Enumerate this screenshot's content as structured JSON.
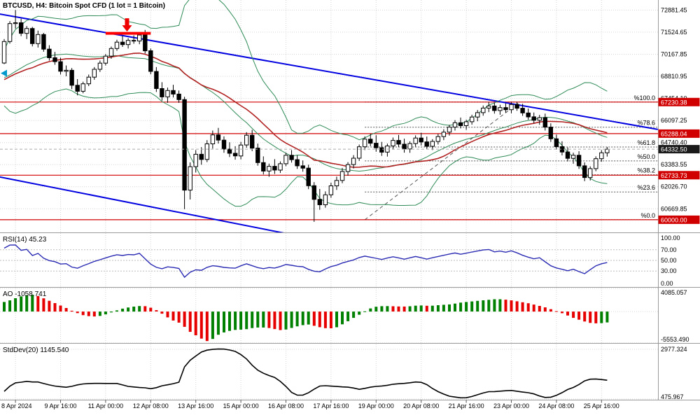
{
  "chart": {
    "title": "BTCUSD, H4: Bitcoin Spot CFD (1 lot = 1 Bitcoin)",
    "symbol": "BTCUSD",
    "timeframe": "H4"
  },
  "colors": {
    "bollinger": "#2e8b57",
    "ma": "#b22222",
    "trendline": "#0000e0",
    "hline": "#d10000",
    "hline_tag_bg": "#d10000",
    "current_tag_bg": "#1a1a1a",
    "rsi_line": "#2b2bb4",
    "ao_up": "#008000",
    "ao_down": "#e60000",
    "stddev_line": "#000000",
    "fib": "#555555",
    "annotation_red": "#ee0000",
    "marker_teal": "#0099cc",
    "grid": "#d6d6d6",
    "level_grid": "#bdbdbd",
    "border": "#9a9a9a"
  },
  "chart_data": {
    "type": "candlestick+indicators",
    "visible_start_index": 42,
    "main": {
      "ylim": [
        59220,
        73500
      ],
      "price_axis_labels": [
        72881.45,
        71524.65,
        70167.85,
        68810.95,
        67454.1,
        66097.25,
        64740.4,
        63383.55,
        62026.7,
        60669.85
      ],
      "axis_decimals": 2,
      "current_price": 64332.5,
      "bollinger": {
        "period": 20,
        "deviation": 2
      },
      "ma": {
        "period": 24,
        "method": "sma"
      },
      "hlines": [
        {
          "price": 67230.38
        },
        {
          "price": 65288.04
        },
        {
          "price": 62733.73
        },
        {
          "price": 60000.0
        }
      ],
      "trendlines": [
        {
          "bar1": -1,
          "price1": 72650,
          "bar2": 116,
          "price2": 65550
        },
        {
          "bar1": -1,
          "price1": 62640,
          "bar2": 53,
          "price2": 58950
        }
      ],
      "fibonacci": {
        "anchor1": {
          "bar": 64,
          "price": 60000.0
        },
        "anchor2": {
          "bar": 91.5,
          "price": 67230.38
        },
        "levels": [
          {
            "pct": "%0.0",
            "price": 60000.0
          },
          {
            "pct": "%23.6",
            "price": 61706.37
          },
          {
            "pct": "%38.2",
            "price": 62762.01
          },
          {
            "pct": "%50.0",
            "price": 63615.19
          },
          {
            "pct": "%61.8",
            "price": 64468.38
          },
          {
            "pct": "%78.6",
            "price": 65683.08
          },
          {
            "pct": "%100.0",
            "price": 67230.38
          }
        ]
      },
      "annotations": {
        "down_arrow": {
          "bar": 21.8,
          "tip_price": 71560
        },
        "resistance_segment": {
          "bar1": 18,
          "bar2": 26,
          "price": 71450
        },
        "left_edge_marker": {
          "price": 69000
        }
      },
      "candles": [
        [
          71280,
          71380,
          70610,
          70760
        ],
        [
          70760,
          71140,
          70380,
          70980
        ],
        [
          70980,
          71050,
          70110,
          70260
        ],
        [
          70260,
          70520,
          69820,
          70050
        ],
        [
          70050,
          70340,
          69610,
          69840
        ],
        [
          69840,
          70110,
          69480,
          69620
        ],
        [
          69620,
          69700,
          68560,
          68750
        ],
        [
          68750,
          68920,
          67820,
          68050
        ],
        [
          68050,
          68480,
          67350,
          67600
        ],
        [
          67600,
          67890,
          66720,
          66960
        ],
        [
          66960,
          67340,
          66580,
          67120
        ],
        [
          67120,
          67350,
          66480,
          66660
        ],
        [
          66660,
          67210,
          66430,
          66900
        ],
        [
          66900,
          67480,
          66620,
          67290
        ],
        [
          67290,
          67420,
          66510,
          66680
        ],
        [
          66680,
          66890,
          65990,
          66210
        ],
        [
          66210,
          66760,
          66060,
          66580
        ],
        [
          66580,
          67120,
          66420,
          66970
        ],
        [
          66970,
          67480,
          66740,
          67310
        ],
        [
          67310,
          67890,
          67120,
          67680
        ],
        [
          67680,
          68150,
          67510,
          67980
        ],
        [
          67980,
          68320,
          67750,
          68120
        ],
        [
          68120,
          68560,
          67980,
          68350
        ],
        [
          68350,
          68680,
          68110,
          68500
        ],
        [
          68500,
          68790,
          67510,
          67760
        ],
        [
          67760,
          68230,
          67180,
          67410
        ],
        [
          67410,
          67850,
          67020,
          67630
        ],
        [
          67630,
          68010,
          67380,
          67820
        ],
        [
          67820,
          68340,
          67560,
          68120
        ],
        [
          68120,
          68290,
          67640,
          67850
        ],
        [
          67850,
          68310,
          67690,
          68140
        ],
        [
          68140,
          68560,
          67950,
          68420
        ],
        [
          68420,
          68740,
          68210,
          68580
        ],
        [
          68580,
          68890,
          68350,
          68710
        ],
        [
          68710,
          69050,
          68520,
          68860
        ],
        [
          68860,
          69110,
          68640,
          68910
        ],
        [
          68910,
          69280,
          68760,
          69130
        ],
        [
          69130,
          69510,
          68980,
          69350
        ],
        [
          69350,
          69720,
          69180,
          69560
        ],
        [
          69560,
          69890,
          69340,
          69470
        ],
        [
          69470,
          69780,
          69260,
          69640
        ],
        [
          69640,
          70020,
          69510,
          69630
        ],
        [
          69630,
          71100,
          69560,
          70950
        ],
        [
          70950,
          72200,
          70820,
          72050
        ],
        [
          72050,
          72880,
          71750,
          72100
        ],
        [
          72100,
          72350,
          71280,
          71450
        ],
        [
          71450,
          71900,
          71100,
          71750
        ],
        [
          71750,
          71850,
          70650,
          70820
        ],
        [
          70820,
          71620,
          70580,
          71380
        ],
        [
          71380,
          71480,
          70320,
          70480
        ],
        [
          70480,
          70720,
          69780,
          69950
        ],
        [
          69950,
          70310,
          69520,
          69710
        ],
        [
          69710,
          69950,
          68920,
          69120
        ],
        [
          69120,
          69480,
          68810,
          69180
        ],
        [
          69180,
          69320,
          68020,
          68260
        ],
        [
          68260,
          68640,
          67640,
          67890
        ],
        [
          67890,
          68480,
          67770,
          68350
        ],
        [
          68350,
          68920,
          68210,
          68760
        ],
        [
          68760,
          69380,
          68600,
          69240
        ],
        [
          69240,
          69780,
          69080,
          69620
        ],
        [
          69620,
          70180,
          69480,
          70050
        ],
        [
          70050,
          70640,
          69890,
          70520
        ],
        [
          70520,
          71060,
          70380,
          70910
        ],
        [
          70910,
          71310,
          70620,
          70760
        ],
        [
          70760,
          71150,
          70520,
          71020
        ],
        [
          71020,
          71330,
          70810,
          70980
        ],
        [
          70980,
          71520,
          70780,
          71350
        ],
        [
          71350,
          71660,
          70210,
          70380
        ],
        [
          70380,
          70520,
          68930,
          69110
        ],
        [
          69110,
          69380,
          67850,
          68060
        ],
        [
          68060,
          68450,
          67320,
          67550
        ],
        [
          67550,
          68120,
          67180,
          67940
        ],
        [
          67940,
          68290,
          67510,
          67720
        ],
        [
          67720,
          67940,
          67180,
          67380
        ],
        [
          67380,
          67550,
          60650,
          61820
        ],
        [
          61820,
          63520,
          61240,
          63260
        ],
        [
          63260,
          64280,
          62900,
          64020
        ],
        [
          64020,
          64460,
          63380,
          63700
        ],
        [
          63700,
          64890,
          63540,
          64660
        ],
        [
          64660,
          65480,
          64370,
          65210
        ],
        [
          65210,
          65640,
          64680,
          64890
        ],
        [
          64890,
          65120,
          64110,
          64340
        ],
        [
          64340,
          64760,
          63850,
          64080
        ],
        [
          64080,
          64520,
          63690,
          63920
        ],
        [
          63920,
          64780,
          63710,
          64590
        ],
        [
          64590,
          65380,
          64420,
          65190
        ],
        [
          65190,
          65520,
          64210,
          64400
        ],
        [
          64400,
          64680,
          63320,
          63510
        ],
        [
          63510,
          63890,
          62780,
          62990
        ],
        [
          62990,
          63450,
          62640,
          63280
        ],
        [
          63280,
          63720,
          62810,
          63050
        ],
        [
          63050,
          63580,
          62870,
          63440
        ],
        [
          63440,
          64120,
          63290,
          63960
        ],
        [
          63960,
          64280,
          63510,
          63690
        ],
        [
          63690,
          63950,
          63120,
          63310
        ],
        [
          63310,
          63640,
          62950,
          63170
        ],
        [
          63170,
          63380,
          61880,
          62090
        ],
        [
          62090,
          62310,
          59870,
          61250
        ],
        [
          61250,
          61890,
          60610,
          60920
        ],
        [
          60920,
          61740,
          60740,
          61530
        ],
        [
          61530,
          62280,
          61350,
          62080
        ],
        [
          62080,
          62650,
          61830,
          62410
        ],
        [
          62410,
          63180,
          62240,
          62960
        ],
        [
          62960,
          63540,
          62710,
          63390
        ],
        [
          63390,
          63970,
          63150,
          63780
        ],
        [
          63780,
          64620,
          63610,
          64480
        ],
        [
          64480,
          65120,
          64280,
          64950
        ],
        [
          64950,
          65280,
          64520,
          64700
        ],
        [
          64700,
          65190,
          64180,
          64420
        ],
        [
          64420,
          64780,
          63920,
          64150
        ],
        [
          64150,
          64680,
          63880,
          64530
        ],
        [
          64530,
          65050,
          64310,
          64870
        ],
        [
          64870,
          65210,
          64460,
          64640
        ],
        [
          64640,
          64980,
          64120,
          64350
        ],
        [
          64350,
          64820,
          64110,
          64680
        ],
        [
          64680,
          65180,
          64490,
          65020
        ],
        [
          65020,
          65340,
          64560,
          64780
        ],
        [
          64780,
          65110,
          64330,
          64510
        ],
        [
          64510,
          64950,
          64280,
          64810
        ],
        [
          64810,
          65270,
          64620,
          65110
        ],
        [
          65110,
          65560,
          64890,
          65380
        ],
        [
          65380,
          65830,
          65170,
          65690
        ],
        [
          65690,
          66120,
          65480,
          65960
        ],
        [
          65960,
          66280,
          65610,
          65780
        ],
        [
          65780,
          66150,
          65520,
          66020
        ],
        [
          66020,
          66450,
          65840,
          66310
        ],
        [
          66310,
          66740,
          66050,
          66580
        ],
        [
          66580,
          67020,
          66390,
          66860
        ],
        [
          66860,
          67230,
          66610,
          66990
        ],
        [
          66990,
          67180,
          66520,
          66710
        ],
        [
          66710,
          67060,
          66450,
          66890
        ],
        [
          66890,
          67150,
          66580,
          66760
        ],
        [
          66760,
          67210,
          66540,
          67080
        ],
        [
          67080,
          67230,
          66690,
          66850
        ],
        [
          66850,
          67120,
          66380,
          66560
        ],
        [
          66560,
          66830,
          66140,
          66320
        ],
        [
          66320,
          66590,
          65920,
          66110
        ],
        [
          66110,
          66440,
          65830,
          66270
        ],
        [
          66270,
          66520,
          65480,
          65690
        ],
        [
          65690,
          65920,
          64780,
          64970
        ],
        [
          64970,
          65230,
          64310,
          64490
        ],
        [
          64490,
          64820,
          63950,
          64160
        ],
        [
          64160,
          64440,
          63580,
          63770
        ],
        [
          63770,
          64120,
          63440,
          63960
        ],
        [
          63960,
          64210,
          63120,
          63310
        ],
        [
          63310,
          63520,
          62370,
          62590
        ],
        [
          62590,
          63280,
          62410,
          63140
        ],
        [
          63140,
          63890,
          62980,
          63750
        ],
        [
          63750,
          64280,
          63570,
          64110
        ],
        [
          64110,
          64470,
          63880,
          64332.5
        ]
      ]
    },
    "rsi": {
      "label": "RSI(14) 45.23",
      "period": 14,
      "ylim": [
        0,
        100
      ],
      "axis_labels": [
        100,
        70,
        50,
        30,
        0
      ],
      "axis_decimals": 2,
      "levels": [
        70,
        50,
        30
      ]
    },
    "ao": {
      "label": "AO -1058.741",
      "fast": 5,
      "slow": 34,
      "ylim": [
        -5553.49,
        4085.057
      ],
      "axis_labels": [
        4085.057,
        -5553.49
      ],
      "axis_decimals": 3
    },
    "stddev": {
      "label": "StdDev(20) 1145.540",
      "period": 20,
      "ylim": [
        405,
        3224
      ],
      "axis_labels": [
        2977.324,
        475.967
      ],
      "axis_decimals": 3
    },
    "time_axis": {
      "labels": [
        "8 Apr 2024",
        "9 Apr 16:00",
        "11 Apr 00:00",
        "12 Apr 08:00",
        "13 Apr 16:00",
        "15 Apr 00:00",
        "16 Apr 08:00",
        "17 Apr 16:00",
        "19 Apr 00:00",
        "20 Apr 08:00",
        "21 Apr 16:00",
        "23 Apr 00:00",
        "24 Apr 08:00",
        "25 Apr 16:00"
      ],
      "label_bars": [
        2,
        10,
        18,
        26,
        34,
        42,
        50,
        58,
        66,
        74,
        82,
        90,
        98,
        106
      ]
    }
  }
}
